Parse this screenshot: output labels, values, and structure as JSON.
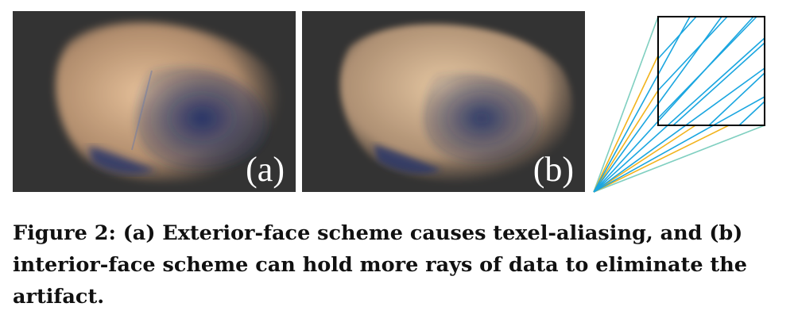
{
  "figure": {
    "panels": [
      {
        "label": "(a)",
        "accent": "#1e2f6e",
        "fur": "#e2b88e"
      },
      {
        "label": "(b)",
        "accent": "#1e2f6e",
        "fur": "#e0bd96"
      }
    ],
    "diagram": {
      "box_stroke": "#000000",
      "interior_ray_color": "#1aa6e0",
      "aliasing_ray_color": "#f2b31c",
      "boundary_ray_color": "#7fcfc0"
    },
    "caption": "Figure 2: (a) Exterior-face scheme causes texel-aliasing, and (b) interior-face scheme can hold more rays of data to eliminate the artifact."
  }
}
